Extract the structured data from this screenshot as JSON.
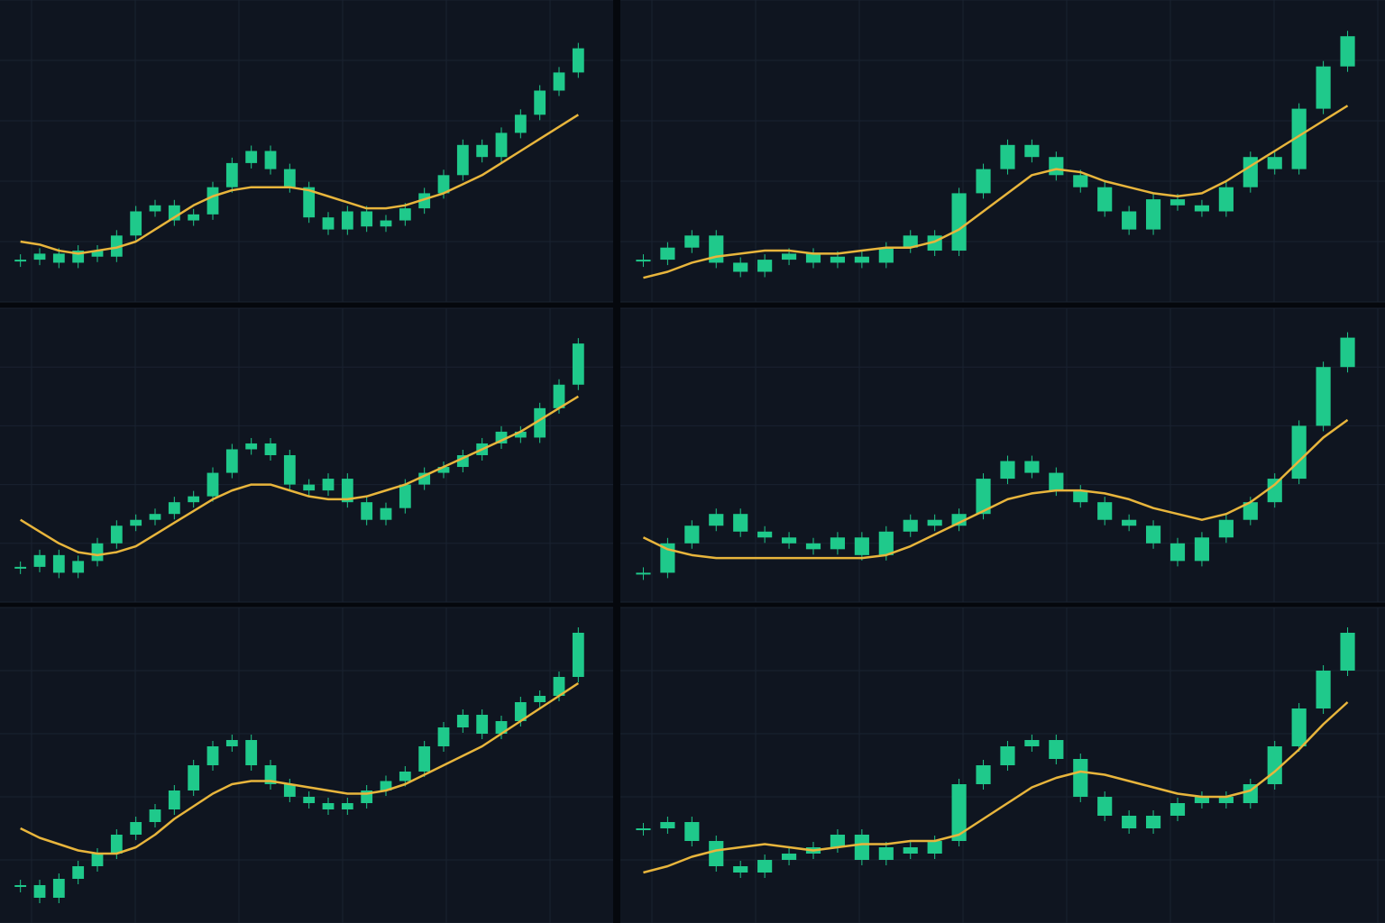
{
  "chart_data": [
    {
      "type": "candlestick",
      "color": "#1fc98b",
      "ylim": [
        0,
        100
      ],
      "yticks": [
        0,
        20,
        40,
        60,
        80,
        100
      ],
      "grid": true,
      "values": [
        14,
        16,
        13,
        17,
        15,
        22,
        30,
        32,
        27,
        29,
        38,
        46,
        50,
        44,
        38,
        28,
        24,
        30,
        25,
        27,
        31,
        36,
        42,
        52,
        48,
        56,
        62,
        70,
        76,
        84
      ],
      "ma": {
        "color": "#e8b53c",
        "values": [
          20,
          19,
          17,
          16,
          17,
          18,
          20,
          24,
          28,
          32,
          35,
          37,
          38,
          38,
          38,
          37,
          35,
          33,
          31,
          31,
          32,
          34,
          36,
          39,
          42,
          46,
          50,
          54,
          58,
          62
        ]
      }
    },
    {
      "type": "candlestick",
      "color": "#1fc98b",
      "ylim": [
        0,
        100
      ],
      "yticks": [
        0,
        20,
        40,
        60,
        80,
        100
      ],
      "grid": true,
      "values": [
        14,
        18,
        22,
        13,
        10,
        14,
        16,
        13,
        15,
        13,
        18,
        22,
        17,
        36,
        44,
        52,
        48,
        42,
        38,
        30,
        24,
        34,
        32,
        30,
        38,
        48,
        44,
        64,
        78,
        88
      ],
      "ma": {
        "color": "#e8b53c",
        "values": [
          8,
          10,
          13,
          15,
          16,
          17,
          17,
          16,
          16,
          17,
          18,
          18,
          20,
          24,
          30,
          36,
          42,
          44,
          43,
          40,
          38,
          36,
          35,
          36,
          40,
          45,
          50,
          55,
          60,
          65
        ]
      }
    },
    {
      "type": "candlestick",
      "color": "#1fc98b",
      "ylim": [
        0,
        100
      ],
      "yticks": [
        0,
        20,
        40,
        60,
        80,
        100
      ],
      "grid": true,
      "values": [
        12,
        16,
        10,
        14,
        20,
        26,
        28,
        30,
        34,
        36,
        44,
        52,
        54,
        50,
        40,
        38,
        42,
        34,
        28,
        32,
        40,
        44,
        46,
        50,
        54,
        58,
        56,
        66,
        74,
        88
      ],
      "ma": {
        "color": "#e8b53c",
        "values": [
          28,
          24,
          20,
          17,
          16,
          17,
          19,
          23,
          27,
          31,
          35,
          38,
          40,
          40,
          38,
          36,
          35,
          35,
          36,
          38,
          40,
          43,
          46,
          49,
          52,
          55,
          58,
          62,
          66,
          70
        ]
      }
    },
    {
      "type": "candlestick",
      "color": "#1fc98b",
      "ylim": [
        0,
        100
      ],
      "yticks": [
        0,
        20,
        40,
        60,
        80,
        100
      ],
      "grid": true,
      "values": [
        10,
        20,
        26,
        30,
        24,
        22,
        20,
        18,
        22,
        16,
        24,
        28,
        26,
        30,
        42,
        48,
        44,
        38,
        34,
        28,
        26,
        20,
        14,
        22,
        28,
        34,
        42,
        60,
        80,
        90
      ],
      "ma": {
        "color": "#e8b53c",
        "values": [
          22,
          18,
          16,
          15,
          15,
          15,
          15,
          15,
          15,
          15,
          16,
          19,
          23,
          27,
          31,
          35,
          37,
          38,
          38,
          37,
          35,
          32,
          30,
          28,
          30,
          34,
          40,
          48,
          56,
          62
        ]
      }
    },
    {
      "type": "candlestick",
      "color": "#1fc98b",
      "ylim": [
        0,
        100
      ],
      "yticks": [
        0,
        20,
        40,
        60,
        80,
        100
      ],
      "grid": true,
      "values": [
        12,
        8,
        14,
        18,
        22,
        28,
        32,
        36,
        42,
        50,
        56,
        58,
        50,
        44,
        40,
        38,
        36,
        38,
        42,
        45,
        48,
        56,
        62,
        66,
        60,
        64,
        70,
        72,
        78,
        92
      ],
      "ma": {
        "color": "#e8b53c",
        "values": [
          30,
          27,
          25,
          23,
          22,
          22,
          24,
          28,
          33,
          37,
          41,
          44,
          45,
          45,
          44,
          43,
          42,
          41,
          41,
          42,
          44,
          47,
          50,
          53,
          56,
          60,
          64,
          68,
          72,
          76
        ]
      }
    },
    {
      "type": "candlestick",
      "color": "#1fc98b",
      "ylim": [
        0,
        100
      ],
      "yticks": [
        0,
        20,
        40,
        60,
        80,
        100
      ],
      "grid": true,
      "values": [
        30,
        32,
        26,
        18,
        16,
        20,
        22,
        24,
        28,
        20,
        24,
        22,
        26,
        44,
        50,
        56,
        58,
        52,
        40,
        34,
        30,
        34,
        38,
        40,
        38,
        44,
        56,
        68,
        80,
        92
      ],
      "ma": {
        "color": "#e8b53c",
        "values": [
          16,
          18,
          21,
          23,
          24,
          25,
          24,
          23,
          24,
          25,
          25,
          26,
          26,
          28,
          33,
          38,
          43,
          46,
          48,
          47,
          45,
          43,
          41,
          40,
          40,
          42,
          48,
          55,
          63,
          70
        ]
      }
    }
  ]
}
